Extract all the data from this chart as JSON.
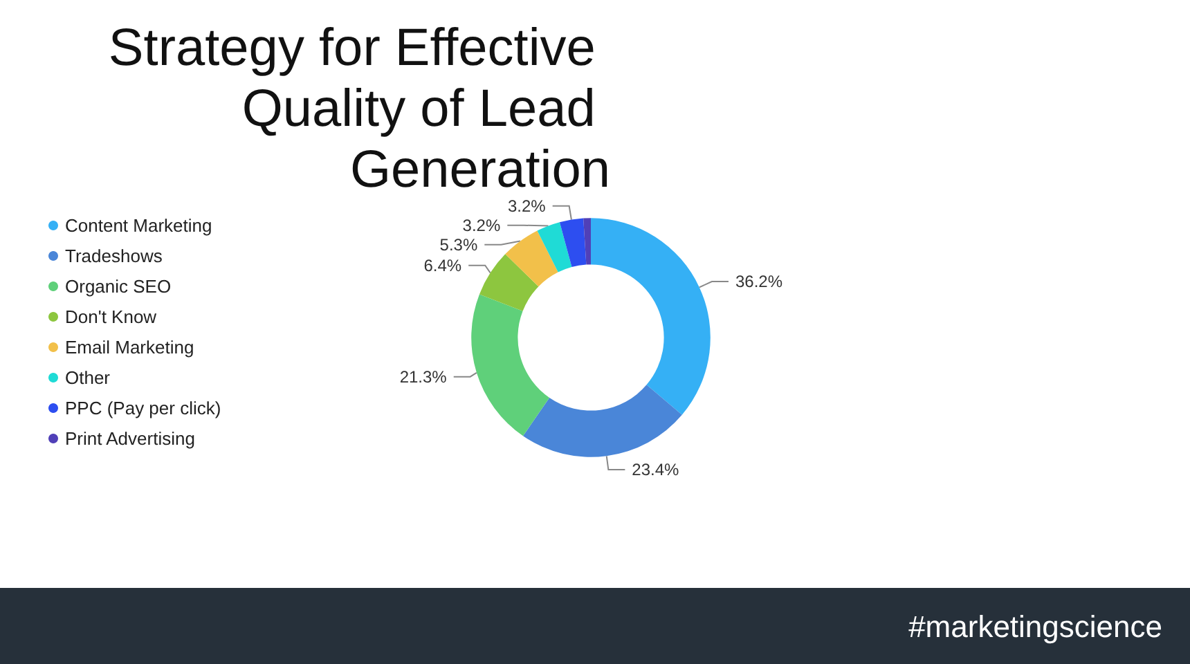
{
  "chart_data": {
    "type": "donut",
    "title": "Strategy for Effective Quality of Lead Generation",
    "categories": [
      "Content Marketing",
      "Tradeshows",
      "Organic SEO",
      "Don't Know",
      "Email Marketing",
      "Other",
      "PPC (Pay per click)",
      "Print Advertising"
    ],
    "values": [
      36.2,
      23.4,
      21.3,
      6.4,
      5.3,
      3.2,
      3.2,
      1.0
    ],
    "value_labels": [
      "36.2%",
      "23.4%",
      "21.3%",
      "6.4%",
      "5.3%",
      "3.2%",
      "3.2%",
      null
    ],
    "colors": [
      "#35b0f5",
      "#4a86d8",
      "#5fd07a",
      "#8dc63f",
      "#f2c04a",
      "#1fdbd6",
      "#2d4ef0",
      "#5040b8"
    ],
    "legend": "left",
    "annotations": [
      "#marketingscience"
    ]
  }
}
